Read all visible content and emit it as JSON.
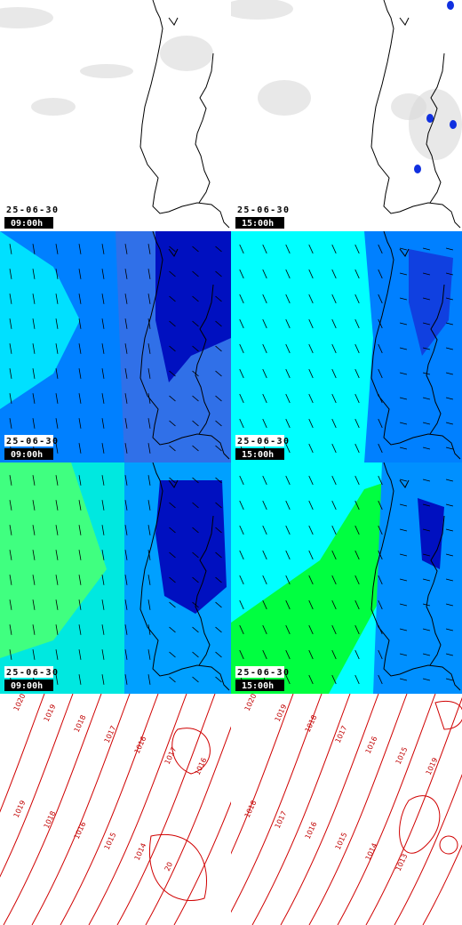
{
  "panels": [
    {
      "date": "25-06-30",
      "time": "09:00h"
    },
    {
      "date": "25-06-30",
      "time": "15:00h"
    },
    {
      "date": "25-06-30",
      "time": "09:00h"
    },
    {
      "date": "25-06-30",
      "time": "15:00h"
    },
    {
      "date": "25-06-30",
      "time": "09:00h"
    },
    {
      "date": "25-06-30",
      "time": "15:00h"
    }
  ],
  "isobars": {
    "left": [
      "1020",
      "1019",
      "1018",
      "1017",
      "1016",
      "1017",
      "1016",
      "1019",
      "1018",
      "1016",
      "1015",
      "1014",
      "20"
    ],
    "right": [
      "1020",
      "1019",
      "1018",
      "1017",
      "1016",
      "1015",
      "1019",
      "1018",
      "1017",
      "1016",
      "1015",
      "1014",
      "1013"
    ]
  }
}
